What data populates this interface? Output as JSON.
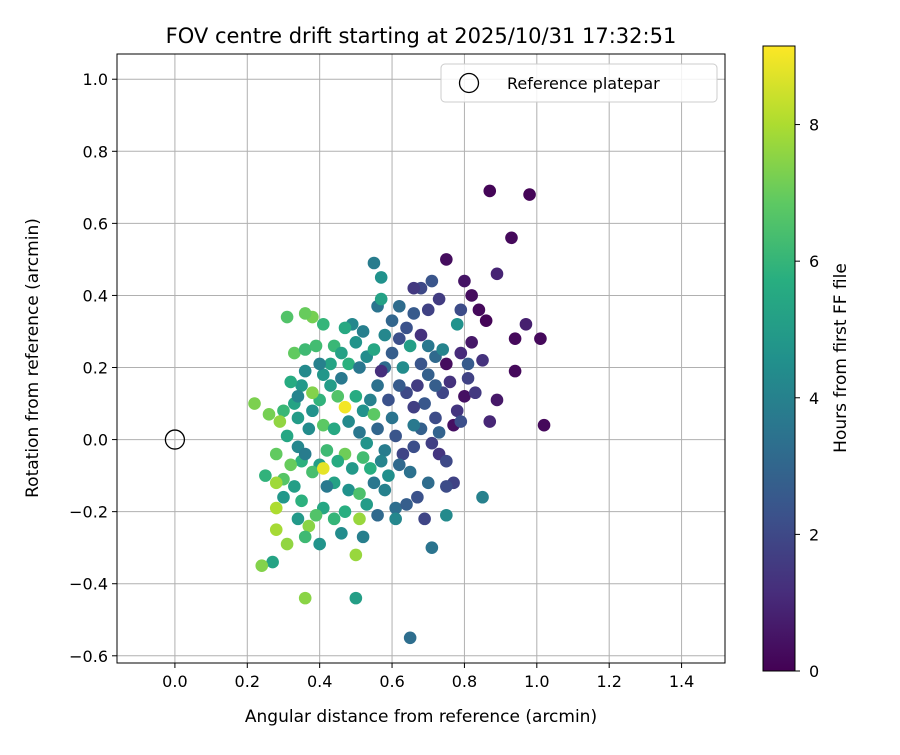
{
  "chart_data": {
    "type": "scatter",
    "title": "FOV centre drift starting at 2025/10/31 17:32:51",
    "xlabel": "Angular distance from reference (arcmin)",
    "ylabel": "Rotation from reference (arcmin)",
    "xlim": [
      -0.16,
      1.52
    ],
    "ylim": [
      -0.62,
      1.07
    ],
    "xticks": [
      0.0,
      0.2,
      0.4,
      0.6,
      0.8,
      1.0,
      1.2,
      1.4
    ],
    "xtick_labels": [
      "0.0",
      "0.2",
      "0.4",
      "0.6",
      "0.8",
      "1.0",
      "1.2",
      "1.4"
    ],
    "yticks": [
      -0.6,
      -0.4,
      -0.2,
      0.0,
      0.2,
      0.4,
      0.6,
      0.8,
      1.0
    ],
    "ytick_labels": [
      "−0.6",
      "−0.4",
      "−0.2",
      "0.0",
      "0.2",
      "0.4",
      "0.6",
      "0.8",
      "1.0"
    ],
    "grid": true,
    "legend": {
      "position": "top-right",
      "entries": [
        "Reference platepar"
      ]
    },
    "reference_point": {
      "x": 0.0,
      "y": 0.0,
      "label": "Reference platepar"
    },
    "colorbar": {
      "label": "Hours from first FF file",
      "colormap": "viridis",
      "range": [
        0,
        9.15
      ],
      "ticks": [
        0,
        2,
        4,
        6,
        8
      ],
      "tick_labels": [
        "0",
        "2",
        "4",
        "6",
        "8"
      ]
    },
    "series": [
      {
        "values": [
          {
            "x": 0.87,
            "y": 0.69,
            "t": 0.1
          },
          {
            "x": 0.98,
            "y": 0.68,
            "t": 0.1
          },
          {
            "x": 0.93,
            "y": 0.56,
            "t": 0.2
          },
          {
            "x": 0.75,
            "y": 0.5,
            "t": 0.3
          },
          {
            "x": 0.89,
            "y": 0.46,
            "t": 0.9
          },
          {
            "x": 0.55,
            "y": 0.49,
            "t": 3.8
          },
          {
            "x": 0.57,
            "y": 0.45,
            "t": 4.6
          },
          {
            "x": 0.8,
            "y": 0.44,
            "t": 0.5
          },
          {
            "x": 0.82,
            "y": 0.4,
            "t": 0.3
          },
          {
            "x": 0.84,
            "y": 0.36,
            "t": 0.2
          },
          {
            "x": 0.86,
            "y": 0.33,
            "t": 0.1
          },
          {
            "x": 0.97,
            "y": 0.32,
            "t": 0.8
          },
          {
            "x": 0.94,
            "y": 0.28,
            "t": 0.2
          },
          {
            "x": 1.01,
            "y": 0.28,
            "t": 0.2
          },
          {
            "x": 0.94,
            "y": 0.19,
            "t": 0.2
          },
          {
            "x": 1.02,
            "y": 0.04,
            "t": 0.2
          },
          {
            "x": 0.89,
            "y": 0.11,
            "t": 0.6
          },
          {
            "x": 0.87,
            "y": 0.05,
            "t": 1.0
          },
          {
            "x": 0.85,
            "y": -0.16,
            "t": 4.0
          },
          {
            "x": 0.82,
            "y": 0.27,
            "t": 0.6
          },
          {
            "x": 0.85,
            "y": 0.22,
            "t": 1.3
          },
          {
            "x": 0.81,
            "y": 0.17,
            "t": 1.8
          },
          {
            "x": 0.8,
            "y": 0.12,
            "t": 0.4
          },
          {
            "x": 0.77,
            "y": 0.04,
            "t": 0.4
          },
          {
            "x": 0.75,
            "y": 0.21,
            "t": 0.3
          },
          {
            "x": 0.73,
            "y": 0.39,
            "t": 1.6
          },
          {
            "x": 0.71,
            "y": 0.44,
            "t": 2.4
          },
          {
            "x": 0.68,
            "y": 0.42,
            "t": 2.0
          },
          {
            "x": 0.66,
            "y": 0.42,
            "t": 1.5
          },
          {
            "x": 0.78,
            "y": 0.32,
            "t": 4.6
          },
          {
            "x": 0.7,
            "y": 0.36,
            "t": 1.8
          },
          {
            "x": 0.64,
            "y": 0.31,
            "t": 2.3
          },
          {
            "x": 0.6,
            "y": 0.33,
            "t": 3.0
          },
          {
            "x": 0.56,
            "y": 0.37,
            "t": 3.5
          },
          {
            "x": 0.57,
            "y": 0.39,
            "t": 5.2
          },
          {
            "x": 0.49,
            "y": 0.32,
            "t": 4.2
          },
          {
            "x": 0.47,
            "y": 0.31,
            "t": 5.5
          },
          {
            "x": 0.41,
            "y": 0.32,
            "t": 6.0
          },
          {
            "x": 0.38,
            "y": 0.34,
            "t": 7.2
          },
          {
            "x": 0.36,
            "y": 0.35,
            "t": 7.0
          },
          {
            "x": 0.31,
            "y": 0.34,
            "t": 6.6
          },
          {
            "x": 0.33,
            "y": 0.24,
            "t": 6.9
          },
          {
            "x": 0.36,
            "y": 0.25,
            "t": 6.2
          },
          {
            "x": 0.39,
            "y": 0.26,
            "t": 6.3
          },
          {
            "x": 0.43,
            "y": 0.21,
            "t": 5.3
          },
          {
            "x": 0.41,
            "y": 0.18,
            "t": 4.8
          },
          {
            "x": 0.46,
            "y": 0.17,
            "t": 3.7
          },
          {
            "x": 0.48,
            "y": 0.21,
            "t": 5.8
          },
          {
            "x": 0.53,
            "y": 0.23,
            "t": 4.4
          },
          {
            "x": 0.51,
            "y": 0.2,
            "t": 3.6
          },
          {
            "x": 0.55,
            "y": 0.25,
            "t": 5.4
          },
          {
            "x": 0.58,
            "y": 0.2,
            "t": 3.2
          },
          {
            "x": 0.6,
            "y": 0.24,
            "t": 2.7
          },
          {
            "x": 0.62,
            "y": 0.28,
            "t": 2.2
          },
          {
            "x": 0.65,
            "y": 0.26,
            "t": 5.1
          },
          {
            "x": 0.68,
            "y": 0.21,
            "t": 2.4
          },
          {
            "x": 0.7,
            "y": 0.18,
            "t": 2.8
          },
          {
            "x": 0.72,
            "y": 0.23,
            "t": 3.1
          },
          {
            "x": 0.74,
            "y": 0.25,
            "t": 4.1
          },
          {
            "x": 0.76,
            "y": 0.16,
            "t": 1.3
          },
          {
            "x": 0.74,
            "y": 0.13,
            "t": 1.9
          },
          {
            "x": 0.78,
            "y": 0.08,
            "t": 1.4
          },
          {
            "x": 0.72,
            "y": 0.06,
            "t": 2.1
          },
          {
            "x": 0.69,
            "y": 0.1,
            "t": 2.5
          },
          {
            "x": 0.66,
            "y": 0.09,
            "t": 1.7
          },
          {
            "x": 0.64,
            "y": 0.13,
            "t": 2.0
          },
          {
            "x": 0.62,
            "y": 0.15,
            "t": 2.6
          },
          {
            "x": 0.59,
            "y": 0.11,
            "t": 2.3
          },
          {
            "x": 0.56,
            "y": 0.15,
            "t": 3.4
          },
          {
            "x": 0.54,
            "y": 0.11,
            "t": 4.0
          },
          {
            "x": 0.52,
            "y": 0.08,
            "t": 4.6
          },
          {
            "x": 0.5,
            "y": 0.12,
            "t": 5.6
          },
          {
            "x": 0.47,
            "y": 0.09,
            "t": 9.0
          },
          {
            "x": 0.45,
            "y": 0.12,
            "t": 6.6
          },
          {
            "x": 0.43,
            "y": 0.15,
            "t": 5.0
          },
          {
            "x": 0.4,
            "y": 0.11,
            "t": 5.9
          },
          {
            "x": 0.38,
            "y": 0.13,
            "t": 7.4
          },
          {
            "x": 0.35,
            "y": 0.15,
            "t": 4.9
          },
          {
            "x": 0.33,
            "y": 0.1,
            "t": 5.3
          },
          {
            "x": 0.3,
            "y": 0.08,
            "t": 6.1
          },
          {
            "x": 0.29,
            "y": 0.05,
            "t": 7.6
          },
          {
            "x": 0.26,
            "y": 0.07,
            "t": 7.2
          },
          {
            "x": 0.22,
            "y": 0.1,
            "t": 7.3
          },
          {
            "x": 0.34,
            "y": 0.06,
            "t": 5.0
          },
          {
            "x": 0.37,
            "y": 0.03,
            "t": 4.4
          },
          {
            "x": 0.41,
            "y": 0.04,
            "t": 6.8
          },
          {
            "x": 0.44,
            "y": 0.03,
            "t": 5.5
          },
          {
            "x": 0.48,
            "y": 0.05,
            "t": 4.3
          },
          {
            "x": 0.51,
            "y": 0.02,
            "t": 3.6
          },
          {
            "x": 0.53,
            "y": -0.01,
            "t": 4.7
          },
          {
            "x": 0.56,
            "y": 0.03,
            "t": 3.0
          },
          {
            "x": 0.58,
            "y": -0.03,
            "t": 3.8
          },
          {
            "x": 0.61,
            "y": 0.01,
            "t": 2.4
          },
          {
            "x": 0.63,
            "y": -0.04,
            "t": 1.9
          },
          {
            "x": 0.66,
            "y": -0.02,
            "t": 2.2
          },
          {
            "x": 0.68,
            "y": 0.03,
            "t": 2.8
          },
          {
            "x": 0.71,
            "y": -0.01,
            "t": 1.7
          },
          {
            "x": 0.73,
            "y": -0.04,
            "t": 1.4
          },
          {
            "x": 0.75,
            "y": -0.06,
            "t": 2.0
          },
          {
            "x": 0.7,
            "y": -0.12,
            "t": 3.2
          },
          {
            "x": 0.77,
            "y": -0.12,
            "t": 1.8
          },
          {
            "x": 0.75,
            "y": -0.13,
            "t": 2.1
          },
          {
            "x": 0.65,
            "y": -0.09,
            "t": 3.4
          },
          {
            "x": 0.62,
            "y": -0.07,
            "t": 3.1
          },
          {
            "x": 0.59,
            "y": -0.1,
            "t": 4.5
          },
          {
            "x": 0.57,
            "y": -0.06,
            "t": 4.1
          },
          {
            "x": 0.54,
            "y": -0.08,
            "t": 5.7
          },
          {
            "x": 0.52,
            "y": -0.05,
            "t": 6.3
          },
          {
            "x": 0.49,
            "y": -0.08,
            "t": 4.9
          },
          {
            "x": 0.47,
            "y": -0.04,
            "t": 7.1
          },
          {
            "x": 0.45,
            "y": -0.06,
            "t": 5.6
          },
          {
            "x": 0.42,
            "y": -0.03,
            "t": 6.2
          },
          {
            "x": 0.4,
            "y": -0.07,
            "t": 5.1
          },
          {
            "x": 0.38,
            "y": -0.09,
            "t": 6.4
          },
          {
            "x": 0.35,
            "y": -0.06,
            "t": 5.8
          },
          {
            "x": 0.32,
            "y": -0.07,
            "t": 7.0
          },
          {
            "x": 0.3,
            "y": -0.11,
            "t": 6.7
          },
          {
            "x": 0.28,
            "y": -0.12,
            "t": 7.8
          },
          {
            "x": 0.25,
            "y": -0.1,
            "t": 5.9
          },
          {
            "x": 0.31,
            "y": 0.01,
            "t": 5.4
          },
          {
            "x": 0.34,
            "y": -0.02,
            "t": 4.2
          },
          {
            "x": 0.36,
            "y": -0.04,
            "t": 3.8
          },
          {
            "x": 0.41,
            "y": -0.08,
            "t": 8.8
          },
          {
            "x": 0.44,
            "y": -0.12,
            "t": 5.2
          },
          {
            "x": 0.48,
            "y": -0.14,
            "t": 4.6
          },
          {
            "x": 0.51,
            "y": -0.15,
            "t": 6.5
          },
          {
            "x": 0.55,
            "y": -0.12,
            "t": 3.6
          },
          {
            "x": 0.58,
            "y": -0.14,
            "t": 4.0
          },
          {
            "x": 0.61,
            "y": -0.19,
            "t": 3.3
          },
          {
            "x": 0.64,
            "y": -0.18,
            "t": 2.7
          },
          {
            "x": 0.67,
            "y": -0.16,
            "t": 2.3
          },
          {
            "x": 0.69,
            "y": -0.22,
            "t": 1.9
          },
          {
            "x": 0.71,
            "y": -0.3,
            "t": 3.5
          },
          {
            "x": 0.75,
            "y": -0.21,
            "t": 4.3
          },
          {
            "x": 0.61,
            "y": -0.22,
            "t": 4.2
          },
          {
            "x": 0.56,
            "y": -0.21,
            "t": 3.1
          },
          {
            "x": 0.53,
            "y": -0.18,
            "t": 5.0
          },
          {
            "x": 0.51,
            "y": -0.22,
            "t": 7.7
          },
          {
            "x": 0.47,
            "y": -0.2,
            "t": 5.7
          },
          {
            "x": 0.44,
            "y": -0.22,
            "t": 6.0
          },
          {
            "x": 0.41,
            "y": -0.19,
            "t": 5.4
          },
          {
            "x": 0.39,
            "y": -0.21,
            "t": 6.6
          },
          {
            "x": 0.37,
            "y": -0.24,
            "t": 7.5
          },
          {
            "x": 0.35,
            "y": -0.17,
            "t": 5.8
          },
          {
            "x": 0.34,
            "y": -0.22,
            "t": 4.9
          },
          {
            "x": 0.31,
            "y": -0.29,
            "t": 7.6
          },
          {
            "x": 0.28,
            "y": -0.25,
            "t": 7.9
          },
          {
            "x": 0.28,
            "y": -0.19,
            "t": 8.0
          },
          {
            "x": 0.27,
            "y": -0.34,
            "t": 5.3
          },
          {
            "x": 0.24,
            "y": -0.35,
            "t": 7.4
          },
          {
            "x": 0.36,
            "y": -0.27,
            "t": 6.2
          },
          {
            "x": 0.4,
            "y": -0.29,
            "t": 4.7
          },
          {
            "x": 0.46,
            "y": -0.26,
            "t": 4.4
          },
          {
            "x": 0.5,
            "y": -0.32,
            "t": 7.7
          },
          {
            "x": 0.52,
            "y": -0.27,
            "t": 3.9
          },
          {
            "x": 0.36,
            "y": -0.44,
            "t": 7.5
          },
          {
            "x": 0.5,
            "y": -0.44,
            "t": 5.1
          },
          {
            "x": 0.65,
            "y": -0.55,
            "t": 3.3
          },
          {
            "x": 0.44,
            "y": 0.26,
            "t": 6.1
          },
          {
            "x": 0.46,
            "y": 0.24,
            "t": 5.2
          },
          {
            "x": 0.5,
            "y": 0.27,
            "t": 4.7
          },
          {
            "x": 0.52,
            "y": 0.3,
            "t": 3.9
          },
          {
            "x": 0.58,
            "y": 0.29,
            "t": 4.2
          },
          {
            "x": 0.66,
            "y": 0.35,
            "t": 2.6
          },
          {
            "x": 0.62,
            "y": 0.37,
            "t": 3.2
          },
          {
            "x": 0.79,
            "y": 0.36,
            "t": 2.1
          },
          {
            "x": 0.79,
            "y": 0.24,
            "t": 1.1
          },
          {
            "x": 0.81,
            "y": 0.21,
            "t": 2.6
          },
          {
            "x": 0.83,
            "y": 0.13,
            "t": 1.5
          },
          {
            "x": 0.79,
            "y": 0.05,
            "t": 2.2
          },
          {
            "x": 0.68,
            "y": 0.29,
            "t": 1.3
          },
          {
            "x": 0.7,
            "y": 0.26,
            "t": 3.6
          },
          {
            "x": 0.72,
            "y": 0.15,
            "t": 2.7
          },
          {
            "x": 0.6,
            "y": 0.06,
            "t": 3.5
          },
          {
            "x": 0.42,
            "y": -0.13,
            "t": 3.7
          },
          {
            "x": 0.55,
            "y": 0.07,
            "t": 6.8
          },
          {
            "x": 0.36,
            "y": 0.19,
            "t": 4.3
          },
          {
            "x": 0.4,
            "y": 0.21,
            "t": 4.0
          },
          {
            "x": 0.38,
            "y": 0.08,
            "t": 4.6
          },
          {
            "x": 0.32,
            "y": 0.16,
            "t": 5.6
          },
          {
            "x": 0.34,
            "y": 0.12,
            "t": 4.1
          },
          {
            "x": 0.28,
            "y": -0.04,
            "t": 6.9
          },
          {
            "x": 0.33,
            "y": -0.13,
            "t": 5.1
          },
          {
            "x": 0.3,
            "y": -0.16,
            "t": 4.8
          },
          {
            "x": 0.63,
            "y": 0.2,
            "t": 4.4
          },
          {
            "x": 0.67,
            "y": 0.15,
            "t": 1.6
          },
          {
            "x": 0.57,
            "y": 0.19,
            "t": 1.2
          },
          {
            "x": 0.66,
            "y": 0.04,
            "t": 3.7
          },
          {
            "x": 0.73,
            "y": 0.02,
            "t": 2.9
          }
        ]
      }
    ]
  }
}
